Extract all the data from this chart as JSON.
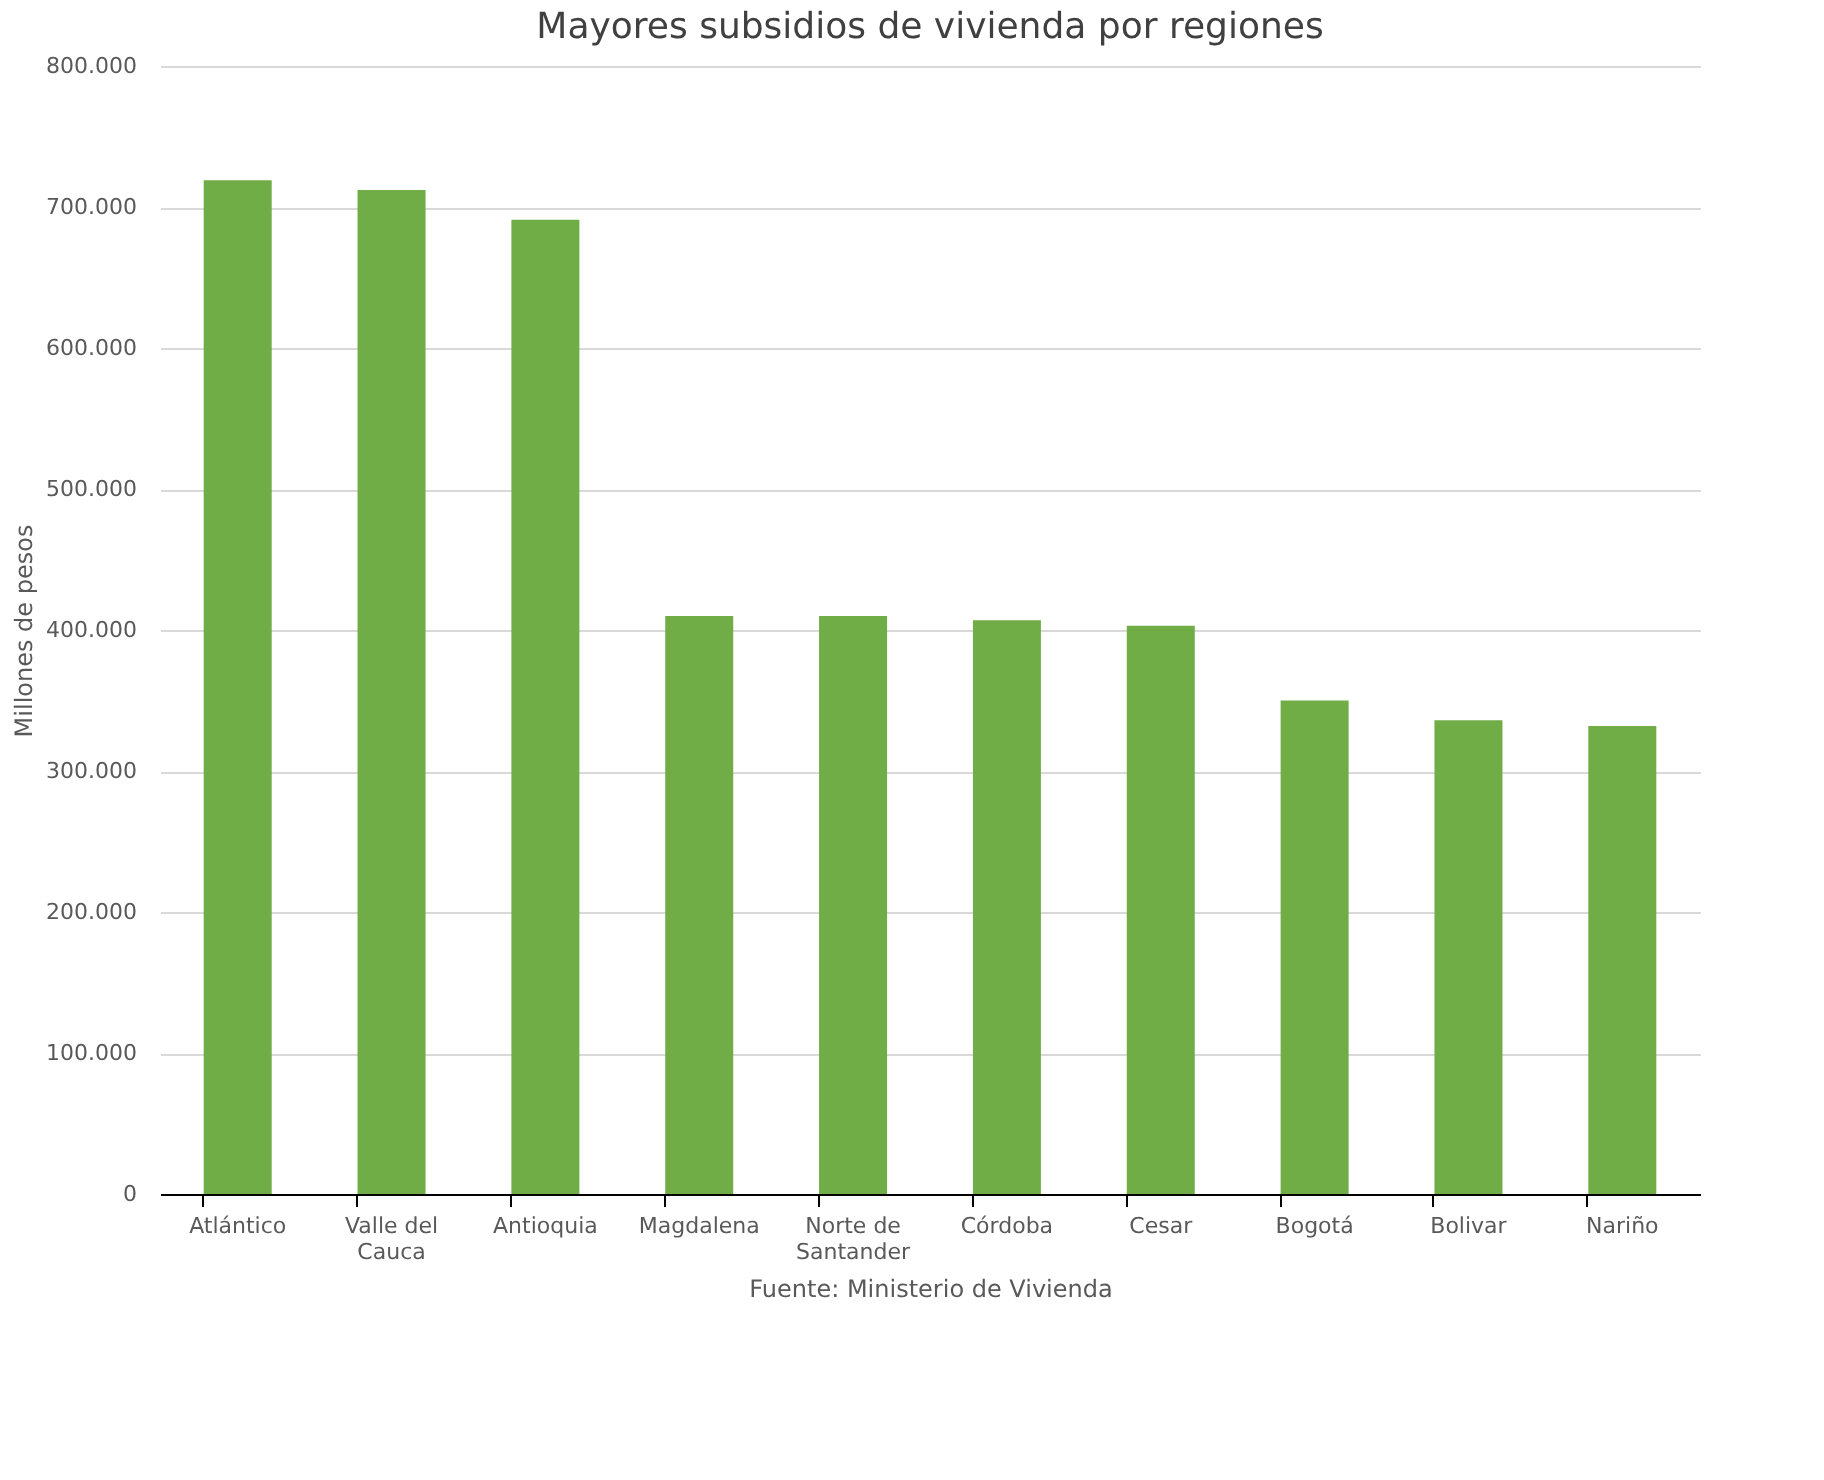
{
  "chart_data": {
    "type": "bar",
    "title": "Mayores subsidios de vivienda por regiones",
    "ylabel": "Millones de pesos",
    "categories": [
      "Atlántico",
      "Valle del Cauca",
      "Antioquia",
      "Magdalena",
      "Norte de Santander",
      "Córdoba",
      "Cesar",
      "Bogotá",
      "Bolivar",
      "Nariño"
    ],
    "values": [
      719000,
      712000,
      691000,
      410000,
      410000,
      407000,
      403000,
      350000,
      336000,
      332000
    ],
    "color": "#70ad47",
    "ylim": [
      0,
      800000
    ],
    "yticks": [
      0,
      {
        "value": 100000,
        "label": "100.000"
      },
      {
        "value": 200000,
        "label": "200.000"
      },
      {
        "value": 300000,
        "label": "300.000"
      },
      {
        "value": 400000,
        "label": "400.000"
      },
      {
        "value": 500000,
        "label": "500.000"
      },
      {
        "value": 600000,
        "label": "600.000"
      },
      {
        "value": 700000,
        "label": "700.000"
      },
      {
        "value": 800000,
        "label": "800.000"
      }
    ],
    "grid": "y",
    "annotations": [
      "Fuente: Ministerio de Vivienda"
    ]
  }
}
